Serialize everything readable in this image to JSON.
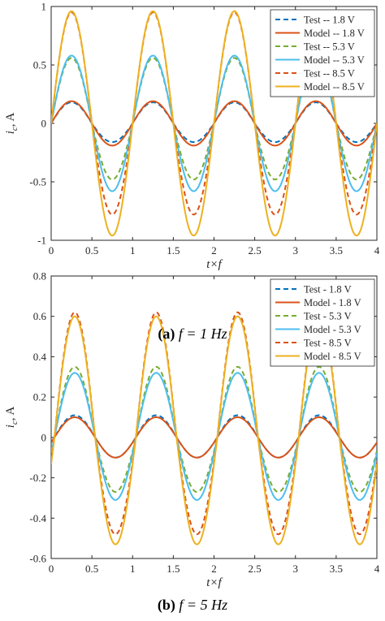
{
  "chart_data": [
    {
      "type": "line",
      "xlabel": "t×f",
      "ylabel": "i_c, A",
      "xlim": [
        0,
        4
      ],
      "ylim": [
        -1,
        1
      ],
      "xticks": [
        "0",
        "0.5",
        "1",
        "1.5",
        "2",
        "2.5",
        "3",
        "3.5",
        "4"
      ],
      "yticks": [
        "-1",
        "-0.5",
        "0",
        "0.5",
        "1"
      ],
      "legend_position": "top-right",
      "caption": {
        "label": "(a)",
        "text": "f = 1 Hz"
      },
      "series": [
        {
          "name": "Test -- 1.8 V",
          "style": "dashed",
          "color": "#0072bd",
          "pos_amp": 0.18,
          "neg_amp": 0.16,
          "phase": 0.0
        },
        {
          "name": "Model -- 1.8 V",
          "style": "solid",
          "color": "#d95319",
          "pos_amp": 0.19,
          "neg_amp": 0.19,
          "phase": 0.0
        },
        {
          "name": "Test -- 5.3 V",
          "style": "dashed",
          "color": "#77ac30",
          "pos_amp": 0.56,
          "neg_amp": 0.48,
          "phase": 0.0
        },
        {
          "name": "Model -- 5.3 V",
          "style": "solid",
          "color": "#4dbeee",
          "pos_amp": 0.58,
          "neg_amp": 0.58,
          "phase": 0.0
        },
        {
          "name": "Test -- 8.5 V",
          "style": "dashed",
          "color": "#d95319",
          "pos_amp": 0.95,
          "neg_amp": 0.78,
          "phase": 0.0
        },
        {
          "name": "Model -- 8.5 V",
          "style": "solid",
          "color": "#edb120",
          "pos_amp": 0.96,
          "neg_amp": 0.96,
          "phase": 0.0
        }
      ]
    },
    {
      "type": "line",
      "xlabel": "t×f",
      "ylabel": "i_c, A",
      "xlim": [
        0,
        4
      ],
      "ylim": [
        -0.6,
        0.8
      ],
      "xticks": [
        "0",
        "0.5",
        "1",
        "1.5",
        "2",
        "2.5",
        "3",
        "3.5",
        "4"
      ],
      "yticks": [
        "-0.6",
        "-0.4",
        "-0.2",
        "0",
        "0.2",
        "0.4",
        "0.6",
        "0.8"
      ],
      "legend_position": "top-right",
      "caption": {
        "label": "(b)",
        "text": "f = 5 Hz"
      },
      "series": [
        {
          "name": "Test - 1.8 V",
          "style": "dashed",
          "color": "#0072bd",
          "pos_amp": 0.11,
          "neg_amp": 0.1,
          "phase": 0.04
        },
        {
          "name": "Model - 1.8 V",
          "style": "solid",
          "color": "#d95319",
          "pos_amp": 0.1,
          "neg_amp": 0.1,
          "phase": 0.04
        },
        {
          "name": "Test - 5.3 V",
          "style": "dashed",
          "color": "#77ac30",
          "pos_amp": 0.35,
          "neg_amp": 0.27,
          "phase": 0.04
        },
        {
          "name": "Model - 5.3 V",
          "style": "solid",
          "color": "#4dbeee",
          "pos_amp": 0.32,
          "neg_amp": 0.31,
          "phase": 0.04
        },
        {
          "name": "Test - 8.5 V",
          "style": "dashed",
          "color": "#d95319",
          "pos_amp": 0.62,
          "neg_amp": 0.48,
          "phase": 0.04
        },
        {
          "name": "Model - 8.5 V",
          "style": "solid",
          "color": "#edb120",
          "pos_amp": 0.6,
          "neg_amp": 0.53,
          "phase": 0.04
        }
      ]
    }
  ]
}
